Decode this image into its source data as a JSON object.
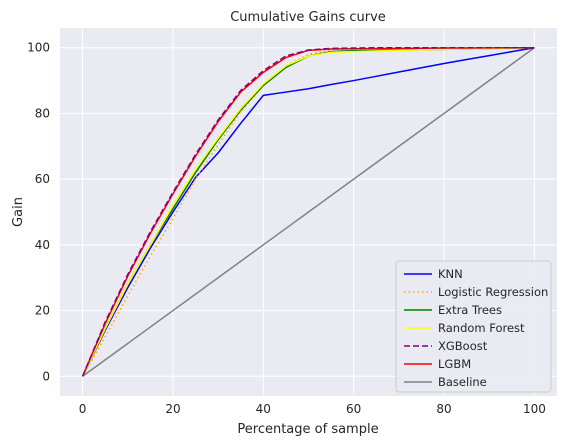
{
  "chart_data": {
    "type": "line",
    "title": "Cumulative Gains curve",
    "xlabel": "Percentage of sample",
    "ylabel": "Gain",
    "xlim": [
      -5,
      105
    ],
    "ylim": [
      -6,
      106
    ],
    "xticks": [
      0,
      20,
      40,
      60,
      80,
      100
    ],
    "yticks": [
      0,
      20,
      40,
      60,
      80,
      100
    ],
    "grid": true,
    "legend_position": "lower-right",
    "colors": {
      "plot_background": "#eaeaf2",
      "grid": "#ffffff"
    },
    "series": [
      {
        "name": "KNN",
        "color": "#0000ff",
        "style": "solid",
        "x": [
          0,
          5,
          10,
          15,
          20,
          25,
          30,
          35,
          40,
          45,
          50,
          55,
          60,
          65,
          70,
          75,
          80,
          85,
          90,
          95,
          100
        ],
        "y": [
          0,
          14,
          27,
          39,
          50,
          60.5,
          68,
          77,
          85.5,
          86.5,
          87.5,
          88.8,
          90,
          91.3,
          92.6,
          93.9,
          95.2,
          96.4,
          97.6,
          98.8,
          100
        ]
      },
      {
        "name": "Logistic Regression",
        "color": "#ffa500",
        "style": "dotted",
        "x": [
          0,
          5,
          10,
          15,
          20,
          25,
          30,
          35,
          40,
          45,
          50,
          55,
          60,
          65,
          70,
          75,
          80,
          85,
          90,
          95,
          100
        ],
        "y": [
          0,
          12,
          24.5,
          36.5,
          48,
          60,
          70.5,
          80.5,
          88.5,
          94.5,
          98,
          99.2,
          99.5,
          99.6,
          99.7,
          99.8,
          99.85,
          99.9,
          99.95,
          100,
          100
        ]
      },
      {
        "name": "Extra Trees",
        "color": "#008000",
        "style": "solid",
        "x": [
          0,
          5,
          10,
          15,
          20,
          25,
          30,
          35,
          40,
          45,
          50,
          55,
          60,
          65,
          70,
          75,
          80,
          85,
          90,
          95,
          100
        ],
        "y": [
          0,
          14.5,
          28,
          40,
          51,
          62,
          72,
          81,
          88.5,
          94,
          97.5,
          98.8,
          99.1,
          99.2,
          99.3,
          99.4,
          99.5,
          99.6,
          99.8,
          99.9,
          100
        ]
      },
      {
        "name": "Random Forest",
        "color": "#ffff00",
        "style": "solid",
        "x": [
          0,
          5,
          10,
          15,
          20,
          25,
          30,
          35,
          40,
          45,
          50,
          55,
          60,
          65,
          70,
          75,
          80,
          85,
          90,
          95,
          100
        ],
        "y": [
          0,
          14.5,
          28,
          40,
          52,
          63,
          72.5,
          81.5,
          89,
          94.5,
          97.5,
          98.6,
          98.8,
          99,
          99.2,
          99.4,
          99.5,
          99.6,
          99.8,
          99.9,
          100
        ]
      },
      {
        "name": "XGBoost",
        "color": "#800080",
        "style": "dashed",
        "x": [
          0,
          5,
          10,
          15,
          20,
          25,
          30,
          35,
          40,
          45,
          50,
          55,
          60,
          65,
          70,
          75,
          80,
          85,
          90,
          95,
          100
        ],
        "y": [
          0,
          16.5,
          31,
          44,
          56,
          67.5,
          78,
          87,
          93,
          97.5,
          99.3,
          99.8,
          99.9,
          100,
          100,
          100,
          100,
          100,
          100,
          100,
          100
        ]
      },
      {
        "name": "LGBM",
        "color": "#ff0000",
        "style": "solid",
        "x": [
          0,
          5,
          10,
          15,
          20,
          25,
          30,
          35,
          40,
          45,
          50,
          55,
          60,
          65,
          70,
          75,
          80,
          85,
          90,
          95,
          100
        ],
        "y": [
          0,
          16,
          30.5,
          43.5,
          55.5,
          67,
          77.5,
          86.5,
          92.5,
          97,
          99.2,
          99.6,
          99.7,
          99.75,
          99.8,
          99.85,
          99.9,
          99.9,
          99.95,
          100,
          100
        ]
      },
      {
        "name": "Baseline",
        "color": "#808080",
        "style": "solid",
        "x": [
          0,
          100
        ],
        "y": [
          0,
          100
        ]
      }
    ]
  }
}
